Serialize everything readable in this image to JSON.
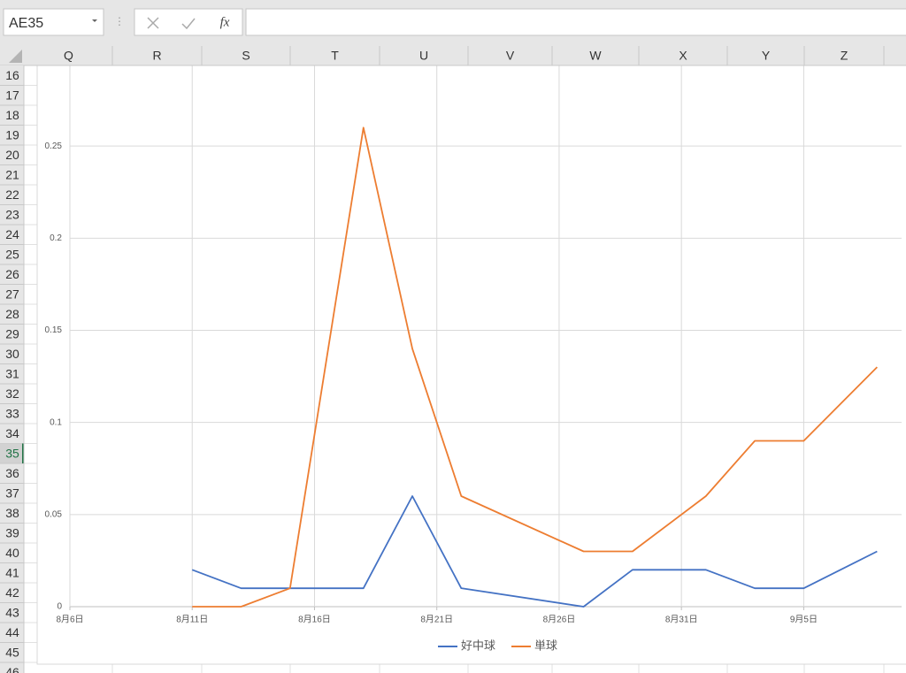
{
  "name_box": "AE35",
  "function_button": "fx",
  "columns": [
    "Q",
    "R",
    "S",
    "T",
    "U",
    "V",
    "W",
    "X",
    "Y",
    "Z"
  ],
  "rows": [
    16,
    17,
    18,
    19,
    20,
    21,
    22,
    23,
    24,
    25,
    26,
    27,
    28,
    29,
    30,
    31,
    32,
    33,
    34,
    35,
    36,
    37,
    38,
    39,
    40,
    41,
    42,
    43,
    44,
    45,
    46
  ],
  "chart_data": {
    "type": "line",
    "x": [
      "08-11",
      "08-13",
      "08-15",
      "08-18",
      "08-20",
      "08-22",
      "08-27",
      "08-29",
      "09-01",
      "09-03",
      "09-05",
      "09-08"
    ],
    "series": [
      {
        "name": "好中球",
        "color": "#4472c4",
        "values": [
          0.02,
          0.01,
          0.01,
          0.01,
          0.06,
          0.01,
          0,
          0.02,
          0.02,
          0.01,
          0.01,
          0.03
        ]
      },
      {
        "name": "単球",
        "color": "#ed7d31",
        "values": [
          0,
          0,
          0.01,
          0.26,
          0.14,
          0.06,
          0.03,
          0.03,
          0.06,
          0.09,
          0.09,
          0.13
        ]
      }
    ],
    "xlim": [
      "08-06",
      "09-09"
    ],
    "xticks": [
      {
        "value": "08-06",
        "label": "8月6日"
      },
      {
        "value": "08-11",
        "label": "8月11日"
      },
      {
        "value": "08-16",
        "label": "8月16日"
      },
      {
        "value": "08-21",
        "label": "8月21日"
      },
      {
        "value": "08-26",
        "label": "8月26日"
      },
      {
        "value": "08-31",
        "label": "8月31日"
      },
      {
        "value": "09-05",
        "label": "9月5日"
      }
    ],
    "ylim": [
      0,
      0.3
    ],
    "yticks": [
      0,
      0.05,
      0.1,
      0.15,
      0.2,
      0.25
    ],
    "grid": true,
    "legend": "bottom"
  }
}
